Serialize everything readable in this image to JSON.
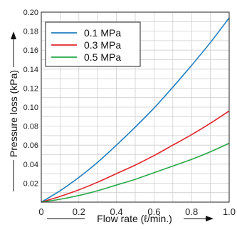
{
  "chart_data": {
    "type": "line",
    "xlabel": "Flow rate (ℓ/min.)",
    "ylabel": "Pressure loss (kPa)",
    "xlim": [
      0,
      1.0
    ],
    "ylim": [
      0,
      0.2
    ],
    "x_ticks": [
      "0",
      "0.2",
      "0.4",
      "0.6",
      "0.8",
      "1.0"
    ],
    "y_ticks": [
      "0.02",
      "0.04",
      "0.06",
      "0.08",
      "0.10",
      "0.12",
      "0.14",
      "0.16",
      "0.18",
      "0.20"
    ],
    "grid": true,
    "legend_position": "top-left",
    "series": [
      {
        "name": "0.1 MPa",
        "color": "#1f7fc0",
        "points": [
          [
            0,
            0
          ],
          [
            0.1,
            0.012
          ],
          [
            0.2,
            0.026
          ],
          [
            0.3,
            0.042
          ],
          [
            0.4,
            0.06
          ],
          [
            0.5,
            0.079
          ],
          [
            0.6,
            0.099
          ],
          [
            0.7,
            0.121
          ],
          [
            0.8,
            0.144
          ],
          [
            0.9,
            0.168
          ],
          [
            1.0,
            0.194
          ]
        ]
      },
      {
        "name": "0.3 MPa",
        "color": "#e0262b",
        "points": [
          [
            0,
            0
          ],
          [
            0.1,
            0.006
          ],
          [
            0.2,
            0.013
          ],
          [
            0.3,
            0.021
          ],
          [
            0.4,
            0.03
          ],
          [
            0.5,
            0.039
          ],
          [
            0.6,
            0.049
          ],
          [
            0.7,
            0.06
          ],
          [
            0.8,
            0.071
          ],
          [
            0.9,
            0.083
          ],
          [
            1.0,
            0.096
          ]
        ]
      },
      {
        "name": "0.5 MPa",
        "color": "#2aa84a",
        "points": [
          [
            0,
            0
          ],
          [
            0.1,
            0.003
          ],
          [
            0.2,
            0.007
          ],
          [
            0.3,
            0.012
          ],
          [
            0.4,
            0.018
          ],
          [
            0.5,
            0.024
          ],
          [
            0.6,
            0.031
          ],
          [
            0.7,
            0.038
          ],
          [
            0.8,
            0.045
          ],
          [
            0.9,
            0.053
          ],
          [
            1.0,
            0.062
          ]
        ]
      }
    ]
  }
}
